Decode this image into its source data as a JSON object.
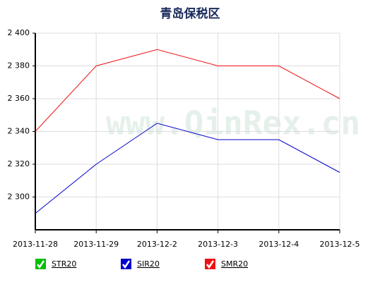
{
  "chart_data": {
    "type": "line",
    "title": "青岛保税区",
    "watermark": "www.QinRex.cn",
    "categories": [
      "2013-11-28",
      "2013-11-29",
      "2013-12-2",
      "2013-12-3",
      "2013-12-4",
      "2013-12-5"
    ],
    "series": [
      {
        "name": "STR20",
        "color": "#00c000",
        "values": [
          null,
          null,
          null,
          null,
          null,
          null
        ]
      },
      {
        "name": "SIR20",
        "color": "#0000cc",
        "values": [
          2290,
          2320,
          2345,
          2335,
          2335,
          2315
        ]
      },
      {
        "name": "SMR20",
        "color": "#ee1111",
        "values": [
          2340,
          2380,
          2390,
          2380,
          2380,
          2360
        ]
      }
    ],
    "ylim": [
      2280,
      2400
    ],
    "yticks": [
      {
        "value": 2300,
        "label": "2 300"
      },
      {
        "value": 2320,
        "label": "2 320"
      },
      {
        "value": 2340,
        "label": "2 340"
      },
      {
        "value": 2360,
        "label": "2 360"
      },
      {
        "value": 2380,
        "label": "2 380"
      },
      {
        "value": 2400,
        "label": "2 400"
      }
    ],
    "grid": true
  }
}
